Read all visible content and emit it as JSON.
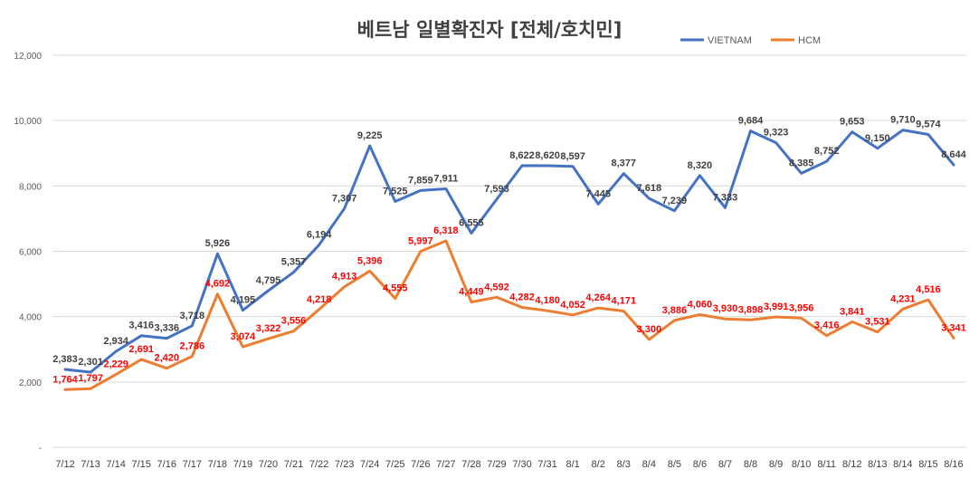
{
  "chart_data": {
    "type": "line",
    "title": "베트남  일별확진자 [전체/호치민]",
    "categories": [
      "7/12",
      "7/13",
      "7/14",
      "7/15",
      "7/16",
      "7/17",
      "7/18",
      "7/19",
      "7/20",
      "7/21",
      "7/22",
      "7/23",
      "7/24",
      "7/25",
      "7/26",
      "7/27",
      "7/28",
      "7/29",
      "7/30",
      "7/31",
      "8/1",
      "8/2",
      "8/3",
      "8/4",
      "8/5",
      "8/6",
      "8/7",
      "8/8",
      "8/9",
      "8/10",
      "8/11",
      "8/12",
      "8/13",
      "8/14",
      "8/15",
      "8/16"
    ],
    "series": [
      {
        "name": "VIETNAM",
        "color": "#4472c4",
        "label_color": "#404040",
        "values": [
          2383,
          2301,
          2934,
          3416,
          3336,
          3718,
          5926,
          4195,
          4795,
          5357,
          6194,
          7307,
          9225,
          7525,
          7859,
          7911,
          6555,
          7593,
          8622,
          8620,
          8597,
          7445,
          8377,
          7618,
          7239,
          8320,
          7333,
          9684,
          9323,
          8385,
          8752,
          9653,
          9150,
          9710,
          9574,
          8644
        ],
        "labels": [
          "2,383",
          "2,301",
          "2,934",
          "3,416",
          "3,336",
          "3,718",
          "5,926",
          "4,195",
          "4,795",
          "5,357",
          "6,194",
          "7,307",
          "9,225",
          "7,525",
          "7,859",
          "7,911",
          "6,555",
          "7,593",
          "8,622",
          "8,620",
          "8,597",
          "7,445",
          "8,377",
          "7,618",
          "7,239",
          "8,320",
          "7,333",
          "9,684",
          "9,323",
          "8,385",
          "8,752",
          "9,653",
          "9,150",
          "9,710",
          "9,574",
          "8,644"
        ]
      },
      {
        "name": "HCM",
        "color": "#ed7d31",
        "label_color": "#ff0000",
        "values": [
          1764,
          1797,
          2229,
          2691,
          2420,
          2786,
          4692,
          3074,
          3322,
          3556,
          4218,
          4913,
          5396,
          4555,
          5997,
          6318,
          4449,
          4592,
          4282,
          4180,
          4052,
          4264,
          4171,
          3300,
          3886,
          4060,
          3930,
          3898,
          3991,
          3956,
          3416,
          3841,
          3531,
          4231,
          4516,
          3341
        ],
        "labels": [
          "1,764",
          "1,797",
          "2,229",
          "2,691",
          "2,420",
          "2,786",
          "4,692",
          "3,074",
          "3,322",
          "3,556",
          "4,218",
          "4,913",
          "5,396",
          "4,555",
          "5,997",
          "6,318",
          "4,449",
          "4,592",
          "4,282",
          "4,180",
          "4,052",
          "4,264",
          "4,171",
          "3,300",
          "3,886",
          "4,060",
          "3,930",
          "3,898",
          "3,991",
          "3,956",
          "3,416",
          "3,841",
          "3,531",
          "4,231",
          "4,516",
          "3,341"
        ]
      }
    ],
    "y_ticks": [
      0,
      2000,
      4000,
      6000,
      8000,
      10000,
      12000
    ],
    "y_tick_labels": [
      "-",
      "2,000",
      "4,000",
      "6,000",
      "8,000",
      "10,000",
      "12,000"
    ],
    "ylim": [
      0,
      12000
    ],
    "grid": true,
    "legend": "top-right",
    "xlabel": "",
    "ylabel": ""
  }
}
